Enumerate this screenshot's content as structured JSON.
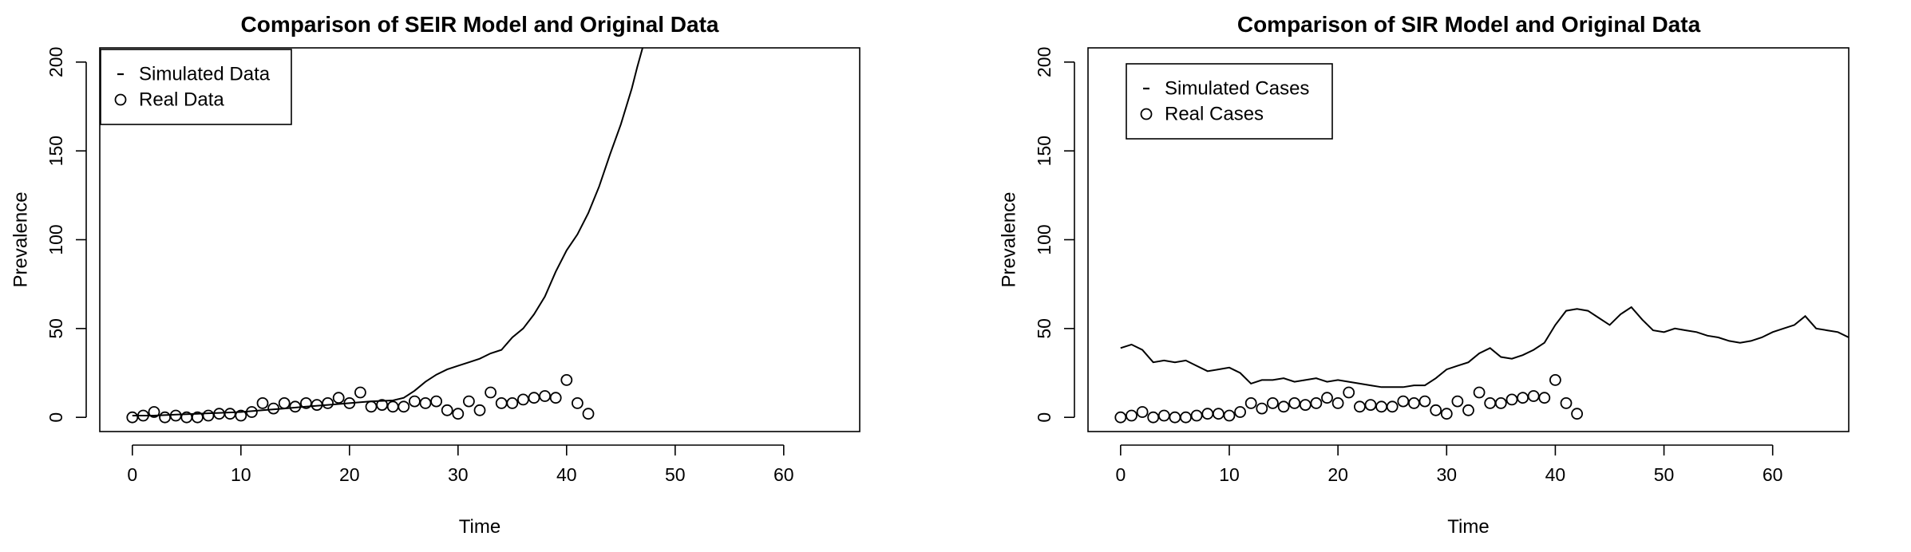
{
  "chart_data": [
    {
      "type": "line",
      "title": "Comparison of SEIR Model and Original Data",
      "xlabel": "Time",
      "ylabel": "Prevalence",
      "xlim": [
        -3,
        67
      ],
      "ylim": [
        -8,
        208
      ],
      "xticks": [
        0,
        10,
        20,
        30,
        40,
        50,
        60
      ],
      "yticks": [
        0,
        50,
        100,
        150,
        200
      ],
      "grid": false,
      "legend": {
        "position": "top-left",
        "entries": [
          {
            "label": "Simulated Data",
            "symbol": "-"
          },
          {
            "label": "Real Data",
            "symbol": "o"
          }
        ]
      },
      "series": [
        {
          "name": "Simulated Data",
          "style": "line",
          "x": [
            0,
            2,
            4,
            6,
            8,
            10,
            12,
            14,
            16,
            18,
            20,
            22,
            24,
            25,
            26,
            27,
            28,
            29,
            30,
            31,
            32,
            33,
            34,
            35,
            36,
            37,
            38,
            39,
            40,
            41,
            42,
            43,
            44,
            45,
            46,
            46.5,
            47
          ],
          "y": [
            1,
            1,
            1.5,
            2,
            2.5,
            3,
            4,
            5,
            6,
            7,
            8,
            9,
            9.5,
            11,
            15,
            20,
            24,
            27,
            29,
            31,
            33,
            36,
            38,
            45,
            50,
            58,
            68,
            82,
            94,
            103,
            115,
            130,
            148,
            165,
            185,
            197,
            208
          ]
        },
        {
          "name": "Real Data",
          "style": "points",
          "x": [
            0,
            1,
            2,
            3,
            4,
            5,
            6,
            7,
            8,
            9,
            10,
            11,
            12,
            13,
            14,
            15,
            16,
            17,
            18,
            19,
            20,
            21,
            22,
            23,
            24,
            25,
            26,
            27,
            28,
            29,
            30,
            31,
            32,
            33,
            34,
            35,
            36,
            37,
            38,
            39,
            40,
            41,
            42
          ],
          "y": [
            0,
            1,
            3,
            0,
            1,
            0,
            0,
            1,
            2,
            2,
            1,
            3,
            8,
            5,
            8,
            6,
            8,
            7,
            8,
            11,
            8,
            14,
            6,
            7,
            6,
            6,
            9,
            8,
            9,
            4,
            2,
            9,
            4,
            14,
            8,
            8,
            10,
            11,
            12,
            11,
            21,
            8,
            2
          ]
        }
      ]
    },
    {
      "type": "line",
      "title": "Comparison of SIR Model and Original Data",
      "xlabel": "Time",
      "ylabel": "Prevalence",
      "xlim": [
        -3,
        67
      ],
      "ylim": [
        -8,
        208
      ],
      "xticks": [
        0,
        10,
        20,
        30,
        40,
        50,
        60
      ],
      "yticks": [
        0,
        50,
        100,
        150,
        200
      ],
      "grid": false,
      "legend": {
        "position": "top-left",
        "entries": [
          {
            "label": "Simulated Cases",
            "symbol": "-"
          },
          {
            "label": "Real Cases",
            "symbol": "o"
          }
        ]
      },
      "series": [
        {
          "name": "Simulated Cases",
          "style": "line",
          "x": [
            0,
            1,
            2,
            3,
            4,
            5,
            6,
            7,
            8,
            9,
            10,
            11,
            12,
            13,
            14,
            15,
            16,
            17,
            18,
            19,
            20,
            21,
            22,
            23,
            24,
            25,
            26,
            27,
            28,
            29,
            30,
            31,
            32,
            33,
            34,
            35,
            36,
            37,
            38,
            39,
            40,
            41,
            42,
            43,
            44,
            45,
            46,
            47,
            48,
            49,
            50,
            51,
            52,
            53,
            54,
            55,
            56,
            57,
            58,
            59,
            60,
            61,
            62,
            63,
            64,
            65,
            66,
            67
          ],
          "y": [
            39,
            41,
            38,
            31,
            32,
            31,
            32,
            29,
            26,
            27,
            28,
            25,
            19,
            21,
            21,
            22,
            20,
            21,
            22,
            20,
            21,
            20,
            19,
            18,
            17,
            17,
            17,
            18,
            18,
            22,
            27,
            29,
            31,
            36,
            39,
            34,
            33,
            35,
            38,
            42,
            52,
            60,
            61,
            60,
            56,
            52,
            58,
            62,
            55,
            49,
            48,
            50,
            49,
            48,
            46,
            45,
            43,
            42,
            43,
            45,
            48,
            50,
            52,
            57,
            50,
            49,
            48,
            45
          ]
        },
        {
          "name": "Real Cases",
          "style": "points",
          "x": [
            0,
            1,
            2,
            3,
            4,
            5,
            6,
            7,
            8,
            9,
            10,
            11,
            12,
            13,
            14,
            15,
            16,
            17,
            18,
            19,
            20,
            21,
            22,
            23,
            24,
            25,
            26,
            27,
            28,
            29,
            30,
            31,
            32,
            33,
            34,
            35,
            36,
            37,
            38,
            39,
            40,
            41,
            42
          ],
          "y": [
            0,
            1,
            3,
            0,
            1,
            0,
            0,
            1,
            2,
            2,
            1,
            3,
            8,
            5,
            8,
            6,
            8,
            7,
            8,
            11,
            8,
            14,
            6,
            7,
            6,
            6,
            9,
            8,
            9,
            4,
            2,
            9,
            4,
            14,
            8,
            8,
            10,
            11,
            12,
            11,
            21,
            8,
            2
          ]
        }
      ]
    }
  ]
}
